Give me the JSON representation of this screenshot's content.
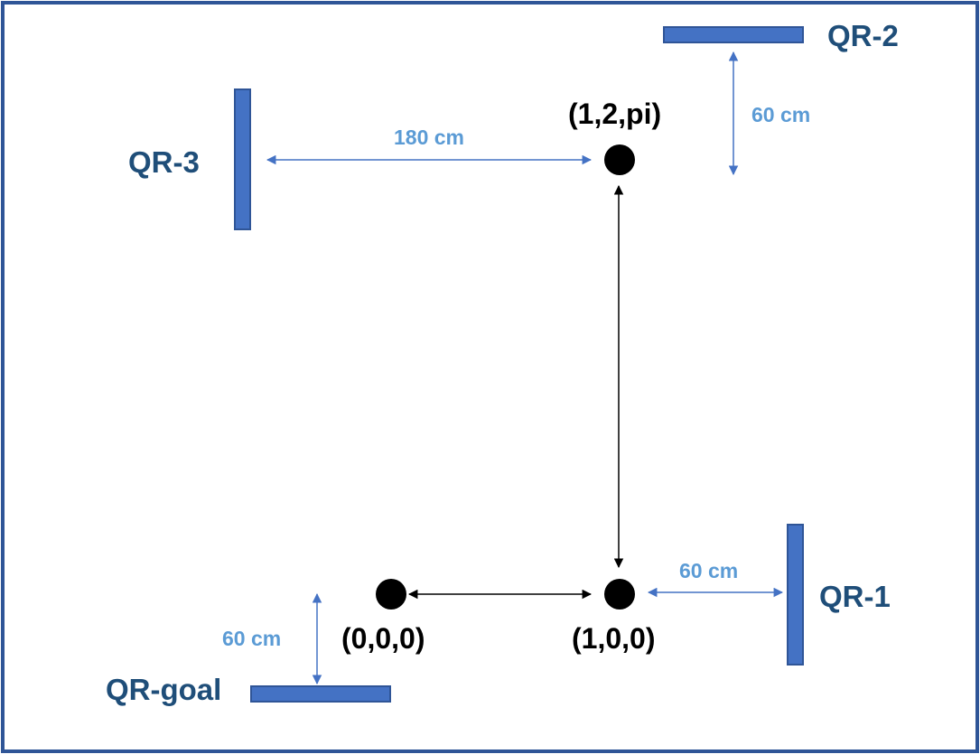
{
  "colors": {
    "frame": "#2f5597",
    "qr_fill": "#4472c4",
    "qr_stroke": "#2f5597",
    "qr_label": "#1f4e79",
    "dimension": "#4472c4",
    "dimension_label": "#5b9bd5",
    "path": "#000000",
    "waypoint": "#000000"
  },
  "qr_markers": {
    "qr1": "QR-1",
    "qr2": "QR-2",
    "qr3": "QR-3",
    "goal": "QR-goal"
  },
  "dimensions": {
    "qr3_to_waypoint": "180 cm",
    "qr2_offset": "60 cm",
    "qr1_offset": "60 cm",
    "goal_offset": "60 cm"
  },
  "waypoints": {
    "origin": "(0,0,0)",
    "corner": "(1,0,0)",
    "top": "(1,2,pi)"
  }
}
